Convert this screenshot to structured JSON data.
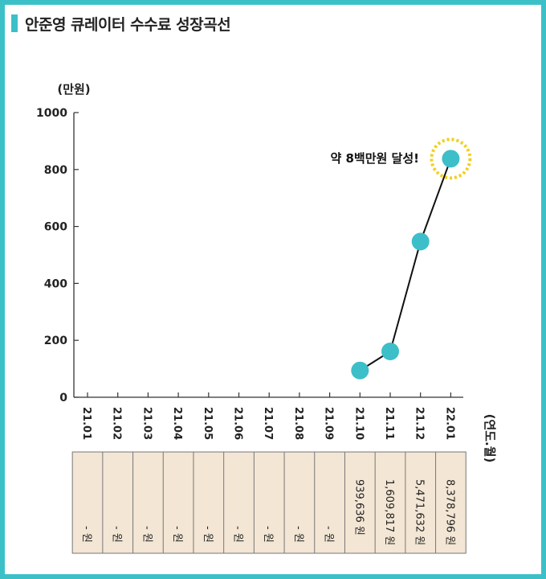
{
  "header": {
    "title": "안준영 큐레이터 수수료 성장곡선"
  },
  "chart_data": {
    "type": "line",
    "ylabel": "(만원)",
    "xlabel": "(연도.월)",
    "ylim": [
      0,
      1000
    ],
    "yticks": [
      "0",
      "200",
      "400",
      "600",
      "800",
      "1000"
    ],
    "categories": [
      "21.01",
      "21.02",
      "21.03",
      "21.04",
      "21.05",
      "21.06",
      "21.07",
      "21.08",
      "21.09",
      "21.10",
      "21.11",
      "21.12",
      "22.01"
    ],
    "series": [
      {
        "values": [
          null,
          null,
          null,
          null,
          null,
          null,
          null,
          null,
          null,
          94,
          161,
          547,
          838
        ]
      }
    ],
    "table_values": [
      "- 원",
      "- 원",
      "- 원",
      "- 원",
      "- 원",
      "- 원",
      "- 원",
      "- 원",
      "- 원",
      "939,636 원",
      "1,609,817 원",
      "5,471,632 원",
      "8,378,796 원"
    ],
    "annotation": "약 8백만원 달성!",
    "colors": {
      "point": "#3cbfc9",
      "line": "#111111",
      "highlight": "#f2cf1f",
      "table_bg": "#f3e6d4",
      "frame": "#3cc0c8"
    }
  }
}
